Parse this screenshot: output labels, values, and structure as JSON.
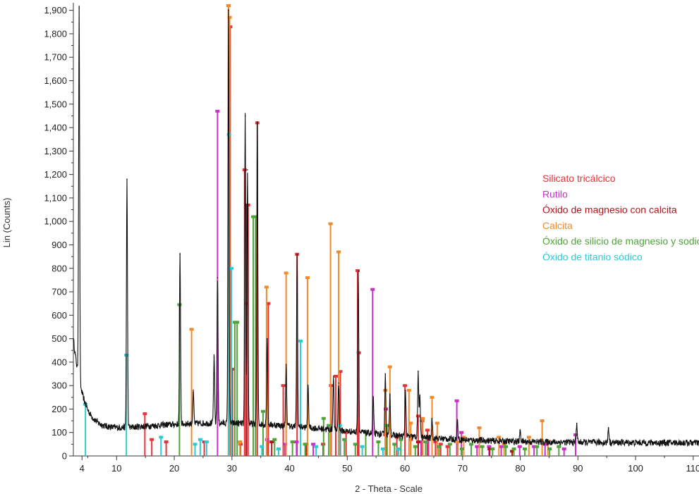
{
  "chart_data": {
    "type": "line",
    "xlabel": "2 - Theta - Scale",
    "ylabel": "Lin (Counts)",
    "xlim": [
      2.5,
      111
    ],
    "ylim": [
      0,
      1920
    ],
    "x_ticks": [
      4,
      10,
      20,
      30,
      40,
      50,
      60,
      70,
      80,
      90,
      100,
      110
    ],
    "y_ticks": [
      0,
      100,
      200,
      300,
      400,
      500,
      600,
      700,
      800,
      900,
      1000,
      1100,
      1200,
      1300,
      1400,
      1500,
      1600,
      1700,
      1800,
      1900
    ],
    "y_tick_labels": [
      "0",
      "100",
      "200",
      "300",
      "400",
      "500",
      "600",
      "700",
      "800",
      "900",
      "1,000",
      "1,100",
      "1,200",
      "1,300",
      "1,400",
      "1,500",
      "1,600",
      "1,700",
      "1,800",
      "1,900"
    ],
    "x_tick_labels": [
      "4",
      "10",
      "20",
      "30",
      "40",
      "50",
      "60",
      "70",
      "80",
      "90",
      "100",
      "110"
    ],
    "legend_position": "right",
    "pattern": {
      "color": "#111111",
      "peaks": [
        {
          "x": 3.5,
          "y": 1910
        },
        {
          "x": 11.8,
          "y": 1180
        },
        {
          "x": 21.0,
          "y": 860
        },
        {
          "x": 23.3,
          "y": 270
        },
        {
          "x": 26.9,
          "y": 420
        },
        {
          "x": 27.5,
          "y": 760
        },
        {
          "x": 29.4,
          "y": 1900
        },
        {
          "x": 32.3,
          "y": 1450
        },
        {
          "x": 32.7,
          "y": 1220
        },
        {
          "x": 34.4,
          "y": 1420
        },
        {
          "x": 36.1,
          "y": 500
        },
        {
          "x": 39.4,
          "y": 390
        },
        {
          "x": 41.3,
          "y": 860
        },
        {
          "x": 43.2,
          "y": 300
        },
        {
          "x": 47.6,
          "y": 340
        },
        {
          "x": 48.5,
          "y": 310
        },
        {
          "x": 51.9,
          "y": 790
        },
        {
          "x": 54.5,
          "y": 250
        },
        {
          "x": 56.6,
          "y": 350
        },
        {
          "x": 57.4,
          "y": 260
        },
        {
          "x": 60.1,
          "y": 280
        },
        {
          "x": 62.3,
          "y": 360
        },
        {
          "x": 62.6,
          "y": 260
        },
        {
          "x": 64.7,
          "y": 160
        },
        {
          "x": 69.1,
          "y": 150
        },
        {
          "x": 80.0,
          "y": 110
        },
        {
          "x": 89.8,
          "y": 140
        },
        {
          "x": 95.3,
          "y": 120
        }
      ]
    },
    "series": [
      {
        "name": "Silicato tricálcico",
        "color": "#e8333b",
        "sticks": [
          {
            "x": 14.9,
            "y": 180
          },
          {
            "x": 16.1,
            "y": 70
          },
          {
            "x": 18.6,
            "y": 60
          },
          {
            "x": 25.2,
            "y": 60
          },
          {
            "x": 29.4,
            "y": 1920
          },
          {
            "x": 29.7,
            "y": 1830
          },
          {
            "x": 30.1,
            "y": 370
          },
          {
            "x": 31.5,
            "y": 50
          },
          {
            "x": 32.2,
            "y": 1220
          },
          {
            "x": 32.5,
            "y": 650
          },
          {
            "x": 32.8,
            "y": 1070
          },
          {
            "x": 34.4,
            "y": 1420
          },
          {
            "x": 36.3,
            "y": 650
          },
          {
            "x": 38.9,
            "y": 300
          },
          {
            "x": 41.3,
            "y": 860
          },
          {
            "x": 45.8,
            "y": 50
          },
          {
            "x": 47.2,
            "y": 300
          },
          {
            "x": 48.0,
            "y": 340
          },
          {
            "x": 48.8,
            "y": 360
          },
          {
            "x": 49.8,
            "y": 100
          },
          {
            "x": 51.8,
            "y": 790
          },
          {
            "x": 52.0,
            "y": 440
          },
          {
            "x": 56.6,
            "y": 90
          },
          {
            "x": 58.6,
            "y": 80
          },
          {
            "x": 60.0,
            "y": 300
          },
          {
            "x": 61.0,
            "y": 70
          },
          {
            "x": 62.3,
            "y": 170
          },
          {
            "x": 63.0,
            "y": 150
          },
          {
            "x": 63.9,
            "y": 110
          },
          {
            "x": 65.3,
            "y": 60
          },
          {
            "x": 66.2,
            "y": 50
          },
          {
            "x": 67.4,
            "y": 40
          }
        ]
      },
      {
        "name": "Rutilo",
        "color": "#cc2ec8",
        "sticks": [
          {
            "x": 27.5,
            "y": 1470
          },
          {
            "x": 36.1,
            "y": 70
          },
          {
            "x": 39.2,
            "y": 50
          },
          {
            "x": 41.2,
            "y": 60
          },
          {
            "x": 44.1,
            "y": 50
          },
          {
            "x": 54.4,
            "y": 710
          },
          {
            "x": 56.7,
            "y": 200
          },
          {
            "x": 62.8,
            "y": 60
          },
          {
            "x": 64.1,
            "y": 80
          },
          {
            "x": 69.0,
            "y": 235
          },
          {
            "x": 69.8,
            "y": 100
          },
          {
            "x": 72.5,
            "y": 40
          },
          {
            "x": 74.6,
            "y": 40
          },
          {
            "x": 76.7,
            "y": 40
          },
          {
            "x": 79.9,
            "y": 40
          },
          {
            "x": 82.4,
            "y": 40
          },
          {
            "x": 84.3,
            "y": 50
          },
          {
            "x": 87.6,
            "y": 30
          },
          {
            "x": 89.6,
            "y": 90
          }
        ]
      },
      {
        "name": "Óxido de magnesio con calcita",
        "color": "#b3141c",
        "sticks": [
          {
            "x": 32.5,
            "y": 1070
          },
          {
            "x": 36.9,
            "y": 60
          },
          {
            "x": 42.9,
            "y": 50
          },
          {
            "x": 62.3,
            "y": 60
          },
          {
            "x": 74.7,
            "y": 30
          },
          {
            "x": 78.6,
            "y": 20
          }
        ]
      },
      {
        "name": "Calcita",
        "color": "#f08a2c",
        "sticks": [
          {
            "x": 23.0,
            "y": 540
          },
          {
            "x": 29.4,
            "y": 1920
          },
          {
            "x": 29.6,
            "y": 1870
          },
          {
            "x": 31.4,
            "y": 60
          },
          {
            "x": 36.0,
            "y": 720
          },
          {
            "x": 39.4,
            "y": 780
          },
          {
            "x": 43.1,
            "y": 760
          },
          {
            "x": 47.1,
            "y": 990
          },
          {
            "x": 48.5,
            "y": 870
          },
          {
            "x": 56.6,
            "y": 280
          },
          {
            "x": 57.4,
            "y": 380
          },
          {
            "x": 60.7,
            "y": 280
          },
          {
            "x": 61.0,
            "y": 140
          },
          {
            "x": 63.1,
            "y": 160
          },
          {
            "x": 64.7,
            "y": 250
          },
          {
            "x": 65.6,
            "y": 140
          },
          {
            "x": 69.2,
            "y": 60
          },
          {
            "x": 70.2,
            "y": 80
          },
          {
            "x": 72.9,
            "y": 120
          },
          {
            "x": 76.3,
            "y": 80
          },
          {
            "x": 77.2,
            "y": 50
          },
          {
            "x": 81.5,
            "y": 80
          },
          {
            "x": 83.8,
            "y": 150
          },
          {
            "x": 84.8,
            "y": 60
          }
        ]
      },
      {
        "name": "Óxido de silicio de magnesio y sodio",
        "color": "#4fa33a",
        "sticks": [
          {
            "x": 20.9,
            "y": 645
          },
          {
            "x": 30.5,
            "y": 570
          },
          {
            "x": 30.9,
            "y": 570
          },
          {
            "x": 33.7,
            "y": 1020
          },
          {
            "x": 34.1,
            "y": 1020
          },
          {
            "x": 35.4,
            "y": 190
          },
          {
            "x": 37.4,
            "y": 70
          },
          {
            "x": 40.5,
            "y": 60
          },
          {
            "x": 42.7,
            "y": 50
          },
          {
            "x": 45.9,
            "y": 160
          },
          {
            "x": 46.8,
            "y": 130
          },
          {
            "x": 49.5,
            "y": 70
          },
          {
            "x": 51.4,
            "y": 50
          },
          {
            "x": 53.2,
            "y": 100
          },
          {
            "x": 55.4,
            "y": 60
          },
          {
            "x": 56.9,
            "y": 130
          },
          {
            "x": 58.2,
            "y": 50
          },
          {
            "x": 59.3,
            "y": 70
          },
          {
            "x": 61.8,
            "y": 40
          },
          {
            "x": 63.6,
            "y": 60
          },
          {
            "x": 65.9,
            "y": 40
          },
          {
            "x": 67.8,
            "y": 50
          },
          {
            "x": 69.9,
            "y": 30
          },
          {
            "x": 71.5,
            "y": 50
          },
          {
            "x": 73.4,
            "y": 40
          },
          {
            "x": 75.2,
            "y": 30
          },
          {
            "x": 77.5,
            "y": 40
          },
          {
            "x": 78.9,
            "y": 30
          },
          {
            "x": 80.8,
            "y": 30
          },
          {
            "x": 82.9,
            "y": 40
          },
          {
            "x": 85.1,
            "y": 30
          },
          {
            "x": 86.7,
            "y": 40
          }
        ]
      },
      {
        "name": "Óxido de titanio sódico",
        "color": "#2ec9d4",
        "sticks": [
          {
            "x": 4.6,
            "y": 220
          },
          {
            "x": 11.7,
            "y": 430
          },
          {
            "x": 17.7,
            "y": 80
          },
          {
            "x": 23.6,
            "y": 50
          },
          {
            "x": 24.5,
            "y": 70
          },
          {
            "x": 25.6,
            "y": 60
          },
          {
            "x": 29.5,
            "y": 1370
          },
          {
            "x": 29.9,
            "y": 800
          },
          {
            "x": 35.2,
            "y": 40
          },
          {
            "x": 38.1,
            "y": 30
          },
          {
            "x": 41.9,
            "y": 490
          },
          {
            "x": 44.6,
            "y": 40
          },
          {
            "x": 48.7,
            "y": 130
          },
          {
            "x": 52.6,
            "y": 40
          },
          {
            "x": 56.2,
            "y": 30
          },
          {
            "x": 58.9,
            "y": 30
          }
        ]
      }
    ]
  }
}
